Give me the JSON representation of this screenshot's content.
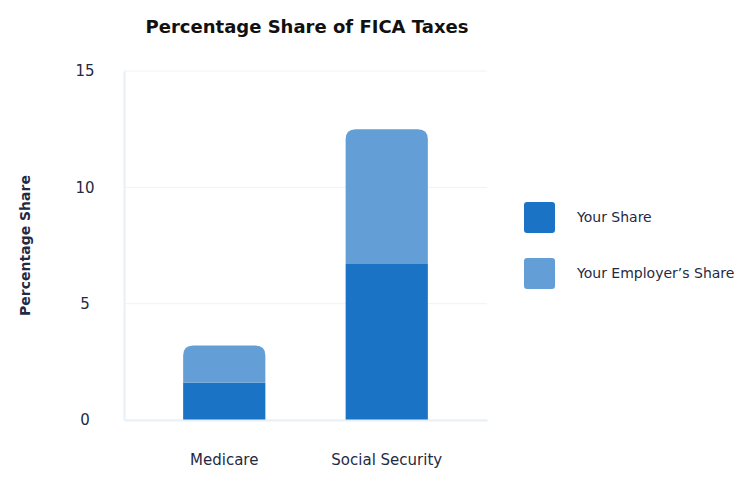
{
  "chart_data": {
    "type": "bar",
    "title": "Percentage Share of FICA Taxes",
    "y_label": "Percentage Share",
    "categories": [
      "Medicare",
      "Social Security"
    ],
    "series": [
      {
        "name": "Your Share",
        "color": "#1a73c5",
        "values": [
          1.6,
          6.7
        ]
      },
      {
        "name": "Your Employer’s Share",
        "color": "#639fd6",
        "values": [
          1.6,
          5.8
        ]
      }
    ],
    "stacked": true,
    "ylim": [
      0,
      15
    ],
    "yticks": [
      0,
      5,
      10,
      15
    ],
    "grid": true,
    "legend": "right"
  }
}
